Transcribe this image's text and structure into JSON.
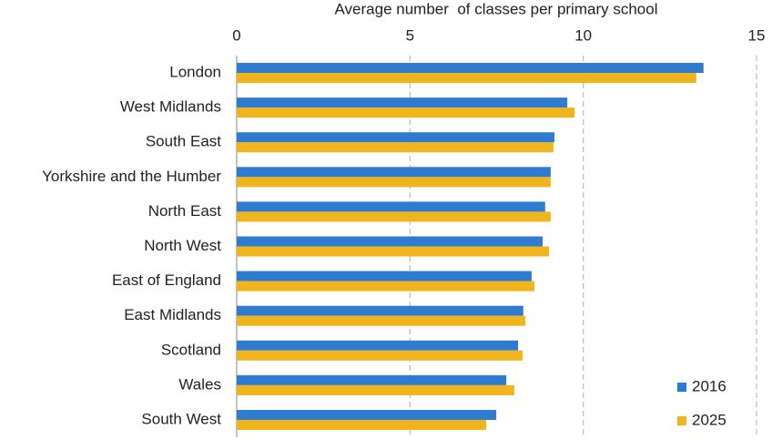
{
  "chart_data": {
    "type": "bar",
    "orientation": "horizontal",
    "x_label": "Average number  of classes per primary school",
    "categories": [
      "London",
      "West Midlands",
      "South East",
      "Yorkshire and the Humber",
      "North East",
      "North West",
      "East of England",
      "East Midlands",
      "Scotland",
      "Wales",
      "South West"
    ],
    "series": [
      {
        "name": "2016",
        "color": "#2e7bcf",
        "values": [
          13.47,
          9.54,
          9.17,
          9.06,
          8.9,
          8.83,
          8.51,
          8.27,
          8.12,
          7.78,
          7.49
        ]
      },
      {
        "name": "2025",
        "color": "#f0b41c",
        "values": [
          13.26,
          9.75,
          9.14,
          9.06,
          9.06,
          9.01,
          8.59,
          8.33,
          8.25,
          8.01,
          7.2
        ]
      }
    ],
    "xlim": [
      0,
      15
    ],
    "xticks": [
      0,
      5,
      10,
      15
    ],
    "grid": true,
    "legend": "bottom-right"
  }
}
